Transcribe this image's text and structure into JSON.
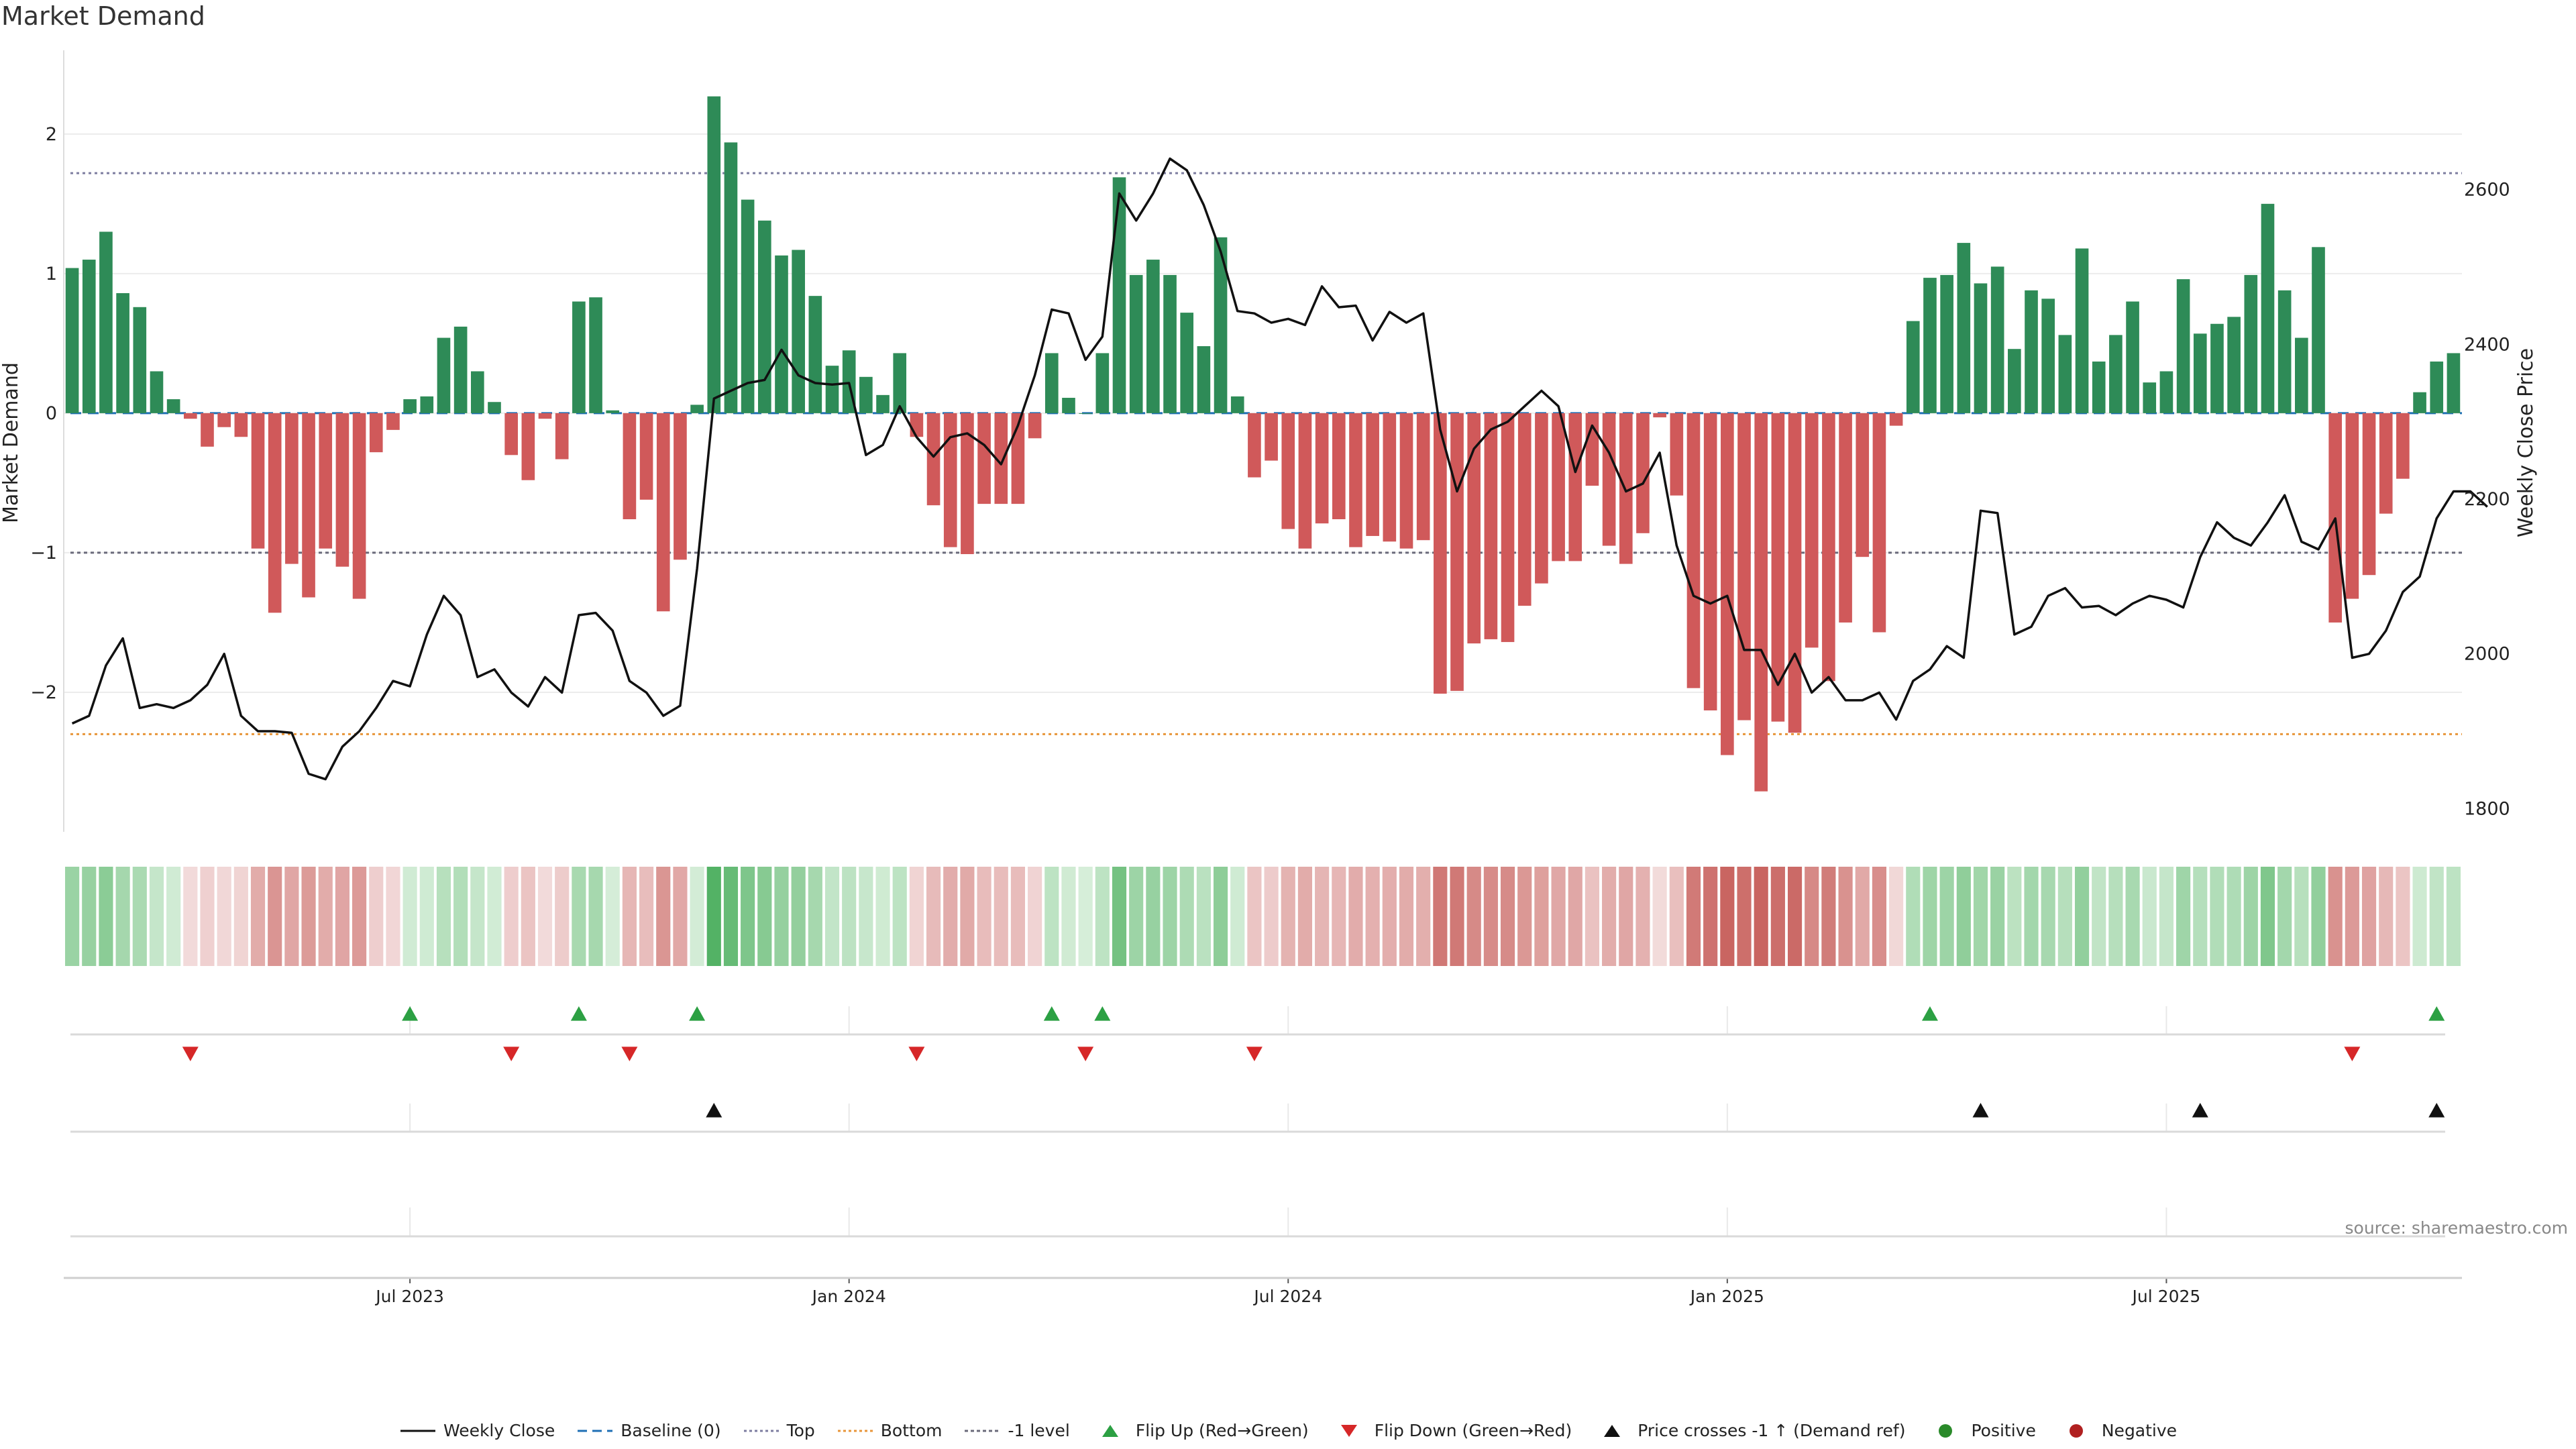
{
  "chart_data": {
    "type": "bar",
    "title": "Market Demand",
    "ylabel_left": "Market Demand",
    "ylabel_right": "Weekly Close Price",
    "left_ticks": [
      2,
      1,
      0,
      -1,
      -2
    ],
    "left_tick_labels": [
      "2",
      "1",
      "0",
      "−1",
      "−2"
    ],
    "ylim_left": [
      -3.0,
      2.6
    ],
    "right_ticks": [
      2600,
      2400,
      2200,
      2000,
      1800
    ],
    "ylim_right": [
      1770,
      2780
    ],
    "x_tick_labels": [
      "Jul 2023",
      "Jan 2024",
      "Jul 2024",
      "Jan 2025",
      "Jul 2025"
    ],
    "x_tick_index": [
      20,
      46,
      72,
      98,
      124
    ],
    "levels": {
      "top": 1.72,
      "bottom": -2.3,
      "minus_one": -1.0
    },
    "demand": [
      1.04,
      1.1,
      1.3,
      0.86,
      0.76,
      0.3,
      0.1,
      -0.04,
      -0.24,
      -0.1,
      -0.17,
      -0.97,
      -1.43,
      -1.08,
      -1.32,
      -0.97,
      -1.1,
      -1.33,
      -0.28,
      -0.12,
      0.1,
      0.12,
      0.54,
      0.62,
      0.3,
      0.08,
      -0.3,
      -0.48,
      -0.04,
      -0.33,
      0.8,
      0.83,
      0.02,
      -0.76,
      -0.62,
      -1.42,
      -1.05,
      0.06,
      2.27,
      1.94,
      1.53,
      1.38,
      1.13,
      1.17,
      0.84,
      0.34,
      0.45,
      0.26,
      0.13,
      0.43,
      -0.17,
      -0.66,
      -0.96,
      -1.01,
      -0.65,
      -0.65,
      -0.65,
      -0.18,
      0.43,
      0.11,
      0.0,
      0.43,
      1.69,
      0.99,
      1.1,
      0.99,
      0.72,
      0.48,
      1.26,
      0.12,
      -0.46,
      -0.34,
      -0.83,
      -0.97,
      -0.79,
      -0.76,
      -0.96,
      -0.88,
      -0.92,
      -0.97,
      -0.91,
      -2.01,
      -1.99,
      -1.65,
      -1.62,
      -1.64,
      -1.38,
      -1.22,
      -1.06,
      -1.06,
      -0.52,
      -0.95,
      -1.08,
      -0.86,
      -0.03,
      -0.59,
      -1.97,
      -2.13,
      -2.45,
      -2.2,
      -2.71,
      -2.21,
      -2.29,
      -1.68,
      -1.92,
      -1.5,
      -1.03,
      -1.57,
      -0.09,
      0.66,
      0.97,
      0.99,
      1.22,
      0.93,
      1.05,
      0.46,
      0.88,
      0.82,
      0.56,
      1.18,
      0.37,
      0.56,
      0.8,
      0.22,
      0.3,
      0.96,
      0.57,
      0.64,
      0.69,
      0.99,
      1.5,
      0.88,
      0.54,
      1.19,
      -1.5,
      -1.33,
      -1.16,
      -0.72,
      -0.47,
      0.15,
      0.37,
      0.43
    ],
    "weekly_close": [
      1910,
      1920,
      1985,
      2020,
      1930,
      1935,
      1930,
      1940,
      1960,
      2000,
      1920,
      1900,
      1900,
      1898,
      1845,
      1838,
      1880,
      1900,
      1930,
      1965,
      1958,
      2025,
      2075,
      2050,
      1970,
      1980,
      1950,
      1932,
      1970,
      1950,
      2050,
      2053,
      2030,
      1965,
      1950,
      1920,
      1933,
      2110,
      2330,
      2340,
      2350,
      2354,
      2393,
      2360,
      2350,
      2348,
      2350,
      2257,
      2270,
      2320,
      2280,
      2255,
      2280,
      2285,
      2270,
      2245,
      2295,
      2360,
      2445,
      2440,
      2380,
      2410,
      2595,
      2560,
      2595,
      2640,
      2625,
      2580,
      2520,
      2443,
      2440,
      2428,
      2433,
      2425,
      2475,
      2448,
      2450,
      2405,
      2442,
      2428,
      2440,
      2290,
      2210,
      2265,
      2290,
      2300,
      2320,
      2340,
      2320,
      2235,
      2295,
      2260,
      2210,
      2220,
      2260,
      2140,
      2075,
      2065,
      2075,
      2005,
      2005,
      1960,
      2000,
      1950,
      1970,
      1940,
      1940,
      1950,
      1915,
      1965,
      1980,
      2010,
      1995,
      2185,
      2182,
      2025,
      2035,
      2075,
      2085,
      2060,
      2062,
      2050,
      2065,
      2075,
      2070,
      2060,
      2125,
      2170,
      2150,
      2140,
      2170,
      2205,
      2145,
      2135,
      2175,
      1995,
      2000,
      2030,
      2080,
      2100,
      2175,
      2210,
      2210,
      2190
    ],
    "flip_up_index": [
      20,
      30,
      37,
      58,
      61,
      110,
      140
    ],
    "flip_down_index": [
      7,
      26,
      33,
      50,
      60,
      70,
      135
    ],
    "price_cross_index": [
      38,
      113,
      126,
      140
    ],
    "legend": [
      {
        "label": "Weekly Close",
        "kind": "line-solid"
      },
      {
        "label": "Baseline (0)",
        "kind": "line-dashed-blue"
      },
      {
        "label": "Top",
        "kind": "line-dotted-gray"
      },
      {
        "label": "Bottom",
        "kind": "line-dotted-orange"
      },
      {
        "label": "-1 level",
        "kind": "line-dotted-dark"
      },
      {
        "label": "Flip Up (Red→Green)",
        "kind": "triangle-up-green"
      },
      {
        "label": "Flip Down (Green→Red)",
        "kind": "triangle-down-red"
      },
      {
        "label": "Price crosses -1 ↑ (Demand ref)",
        "kind": "triangle-up-black"
      },
      {
        "label": "Positive",
        "kind": "dot-green"
      },
      {
        "label": "Negative",
        "kind": "dot-red"
      }
    ],
    "source": "source: sharemaestro.com"
  },
  "colors": {
    "positive": "#2e8b57",
    "negative": "#d0595a",
    "price_line": "#111111",
    "baseline": "#1f6fb5",
    "top_level": "#7d7da0",
    "bottom_level": "#e8963a",
    "minus_one_level": "#6a6a7a",
    "flip_up": "#2ca043",
    "flip_down": "#d62728",
    "cross": "#111111"
  }
}
